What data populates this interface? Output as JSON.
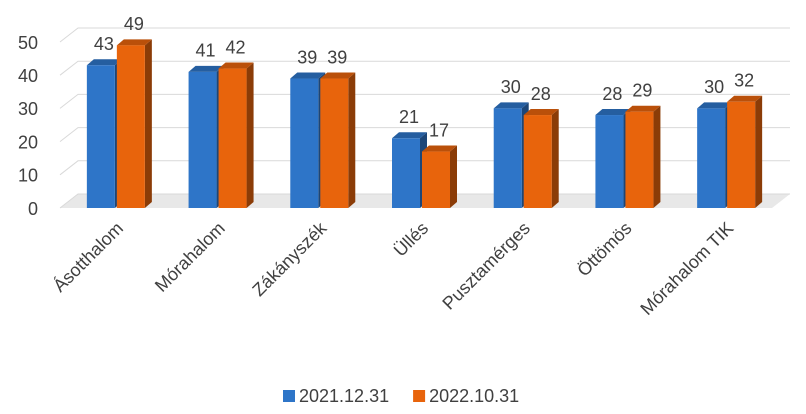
{
  "chart_data": {
    "type": "bar3d",
    "categories": [
      "Ásotthalom",
      "Mórahalom",
      "Zákányszék",
      "Üllés",
      "Pusztamérges",
      "Öttömös",
      "Mórahalom TIK"
    ],
    "series": [
      {
        "name": "2021.12.31",
        "color": "#2e75c8",
        "values": [
          43,
          41,
          39,
          21,
          30,
          28,
          30
        ]
      },
      {
        "name": "2022.10.31",
        "color": "#e8640c",
        "values": [
          49,
          42,
          39,
          17,
          28,
          29,
          32
        ]
      }
    ],
    "ylim": [
      0,
      50
    ],
    "yticks": [
      0,
      10,
      20,
      30,
      40,
      50
    ],
    "grid": true,
    "legend": "bottom"
  }
}
